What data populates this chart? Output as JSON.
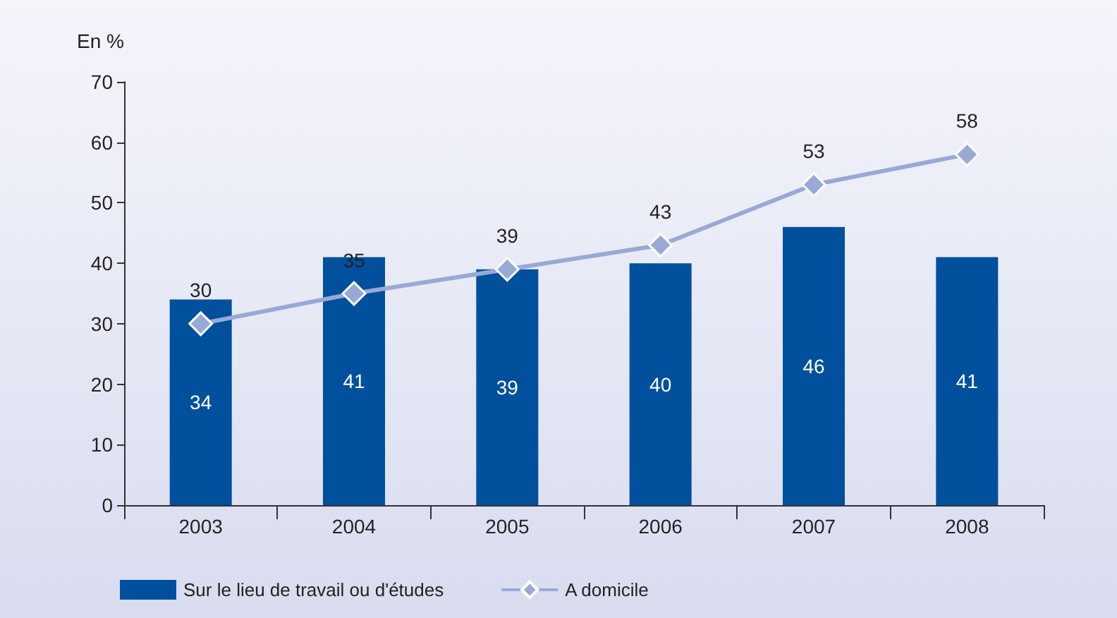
{
  "chart_data": {
    "type": "bar",
    "ylabel": "En %",
    "categories": [
      "2003",
      "2004",
      "2005",
      "2006",
      "2007",
      "2008"
    ],
    "series": [
      {
        "name": "Sur le lieu de travail ou d'études",
        "color": "#00509e",
        "values": [
          34,
          41,
          39,
          40,
          46,
          41
        ]
      },
      {
        "name": "A domicile",
        "type": "line",
        "color": "#99a9d6",
        "values": [
          30,
          35,
          39,
          43,
          53,
          58
        ],
        "marker": "diamond"
      }
    ],
    "ylim": [
      0,
      70
    ],
    "yticks": [
      0,
      10,
      20,
      30,
      40,
      50,
      60,
      70
    ],
    "grid": false,
    "data_labels": true,
    "legend": "bottom left"
  }
}
